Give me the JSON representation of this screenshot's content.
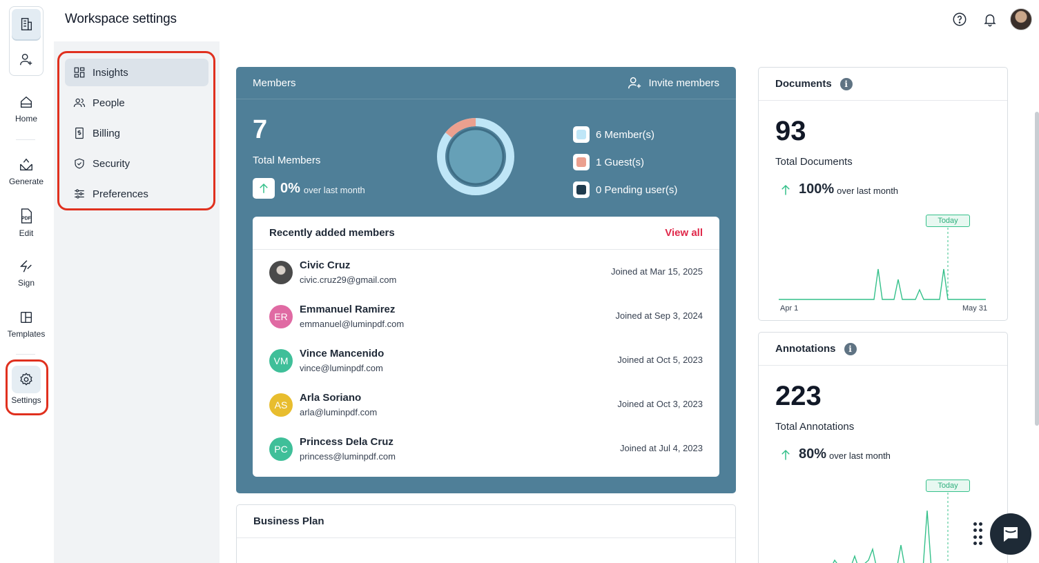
{
  "header": {
    "title": "Workspace settings"
  },
  "rail": {
    "items": [
      {
        "label": "Home",
        "icon": "home-icon"
      },
      {
        "label": "Generate",
        "icon": "generate-icon"
      },
      {
        "label": "Edit",
        "icon": "pdf-edit-icon"
      },
      {
        "label": "Sign",
        "icon": "sign-icon"
      },
      {
        "label": "Templates",
        "icon": "templates-icon"
      },
      {
        "label": "Settings",
        "icon": "gear-icon"
      }
    ],
    "pdf_glyph": "PDF"
  },
  "subnav": {
    "items": [
      {
        "label": "Insights",
        "icon": "insights-icon",
        "active": true
      },
      {
        "label": "People",
        "icon": "people-icon"
      },
      {
        "label": "Billing",
        "icon": "billing-icon"
      },
      {
        "label": "Security",
        "icon": "shield-icon"
      },
      {
        "label": "Preferences",
        "icon": "sliders-icon"
      }
    ]
  },
  "members": {
    "title": "Members",
    "invite_label": "Invite members",
    "total": "7",
    "total_label": "Total Members",
    "growth_pct": "0%",
    "growth_sub": "over last month",
    "legend": [
      {
        "label": "6 Member(s)",
        "color": "#bfe6f7"
      },
      {
        "label": "1 Guest(s)",
        "color": "#eba08f"
      },
      {
        "label": "0 Pending user(s)",
        "color": "#1f3b4d"
      }
    ],
    "donut": {
      "members": 6,
      "guests": 1,
      "pending": 0
    },
    "recent": {
      "title": "Recently added members",
      "view_all": "View all",
      "rows": [
        {
          "name": "Civic Cruz",
          "email": "civic.cruz29@gmail.com",
          "joined": "Joined at Mar 15, 2025",
          "initials": "",
          "color": "#6b6b6b"
        },
        {
          "name": "Emmanuel Ramirez",
          "email": "emmanuel@luminpdf.com",
          "joined": "Joined at Sep 3, 2024",
          "initials": "ER",
          "color": "#e06aa3"
        },
        {
          "name": "Vince Mancenido",
          "email": "vince@luminpdf.com",
          "joined": "Joined at Oct 5, 2023",
          "initials": "VM",
          "color": "#3fbf99"
        },
        {
          "name": "Arla Soriano",
          "email": "arla@luminpdf.com",
          "joined": "Joined at Oct 3, 2023",
          "initials": "AS",
          "color": "#e8bd2e"
        },
        {
          "name": "Princess Dela Cruz",
          "email": "princess@luminpdf.com",
          "joined": "Joined at Jul 4, 2023",
          "initials": "PC",
          "color": "#3fbf99"
        }
      ]
    }
  },
  "business_plan": {
    "title": "Business Plan"
  },
  "documents": {
    "title": "Documents",
    "total": "93",
    "total_label": "Total Documents",
    "growth_pct": "100%",
    "growth_sub": "over last month",
    "today_label": "Today",
    "x_start": "Apr 1",
    "x_end": "May 31"
  },
  "annotations": {
    "title": "Annotations",
    "total": "223",
    "total_label": "Total Annotations",
    "growth_pct": "80%",
    "growth_sub": "over last month",
    "today_label": "Today"
  },
  "colors": {
    "accent_red": "#e0284a",
    "card_blue": "#4f7f98",
    "spark_green": "#34c08a",
    "highlight_outline": "#e0301e"
  }
}
